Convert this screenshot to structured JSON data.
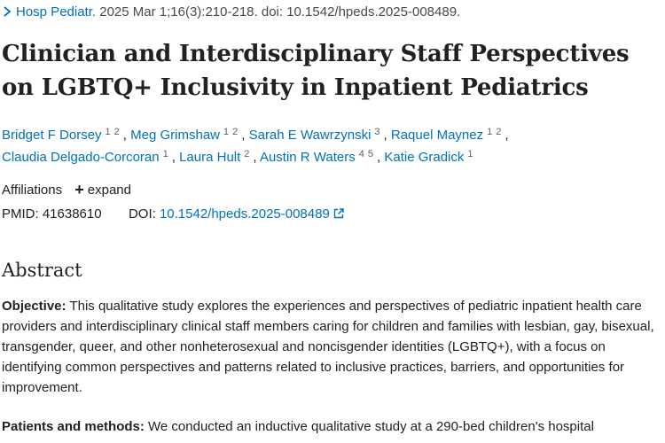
{
  "citation": {
    "journal": "Hosp Pediatr.",
    "details": "2025 Mar 1;16(3):210-218. doi: 10.1542/hpeds.2025-008489."
  },
  "article": {
    "title": "Clinician and Interdisciplinary Staff Perspectives on LGBTQ+ Inclusivity in Inpatient Pediatrics"
  },
  "authors": [
    {
      "name": "Bridget F Dorsey",
      "affil": [
        "1",
        "2"
      ]
    },
    {
      "name": "Meg Grimshaw",
      "affil": [
        "1",
        "2"
      ]
    },
    {
      "name": "Sarah E Wawrzynski",
      "affil": [
        "3"
      ]
    },
    {
      "name": "Raquel Maynez",
      "affil": [
        "1",
        "2"
      ]
    },
    {
      "name": "Claudia Delgado-Corcoran",
      "affil": [
        "1"
      ]
    },
    {
      "name": "Laura Hult",
      "affil": [
        "2"
      ]
    },
    {
      "name": "Austin R Waters",
      "affil": [
        "4",
        "5"
      ]
    },
    {
      "name": "Katie Gradick",
      "affil": [
        "1"
      ]
    }
  ],
  "affiliations": {
    "label": "Affiliations",
    "expand_label": "expand"
  },
  "identifiers": {
    "pmid_label": "PMID:",
    "pmid": "41638610",
    "doi_label": "DOI:",
    "doi": "10.1542/hpeds.2025-008489"
  },
  "abstract": {
    "heading": "Abstract",
    "objective_label": "Objective:",
    "objective_text": "This qualitative study explores the experiences and perspectives of pediatric inpatient health care providers and interdisciplinary clinical staff members caring for children and families with lesbian, gay, bisexual, transgender, queer, and other nonheterosexual and noncisgender identities (LGBTQ+), with a focus on identifying common perspectives and patterns related to inclusive practices, barriers, and opportunities for improvement.",
    "methods_label": "Patients and methods:",
    "methods_text": "We conducted an inductive qualitative study at a 290-bed children's hospital"
  },
  "colors": {
    "link": "#0071bc",
    "text": "#212121",
    "muted": "#5b616b"
  }
}
